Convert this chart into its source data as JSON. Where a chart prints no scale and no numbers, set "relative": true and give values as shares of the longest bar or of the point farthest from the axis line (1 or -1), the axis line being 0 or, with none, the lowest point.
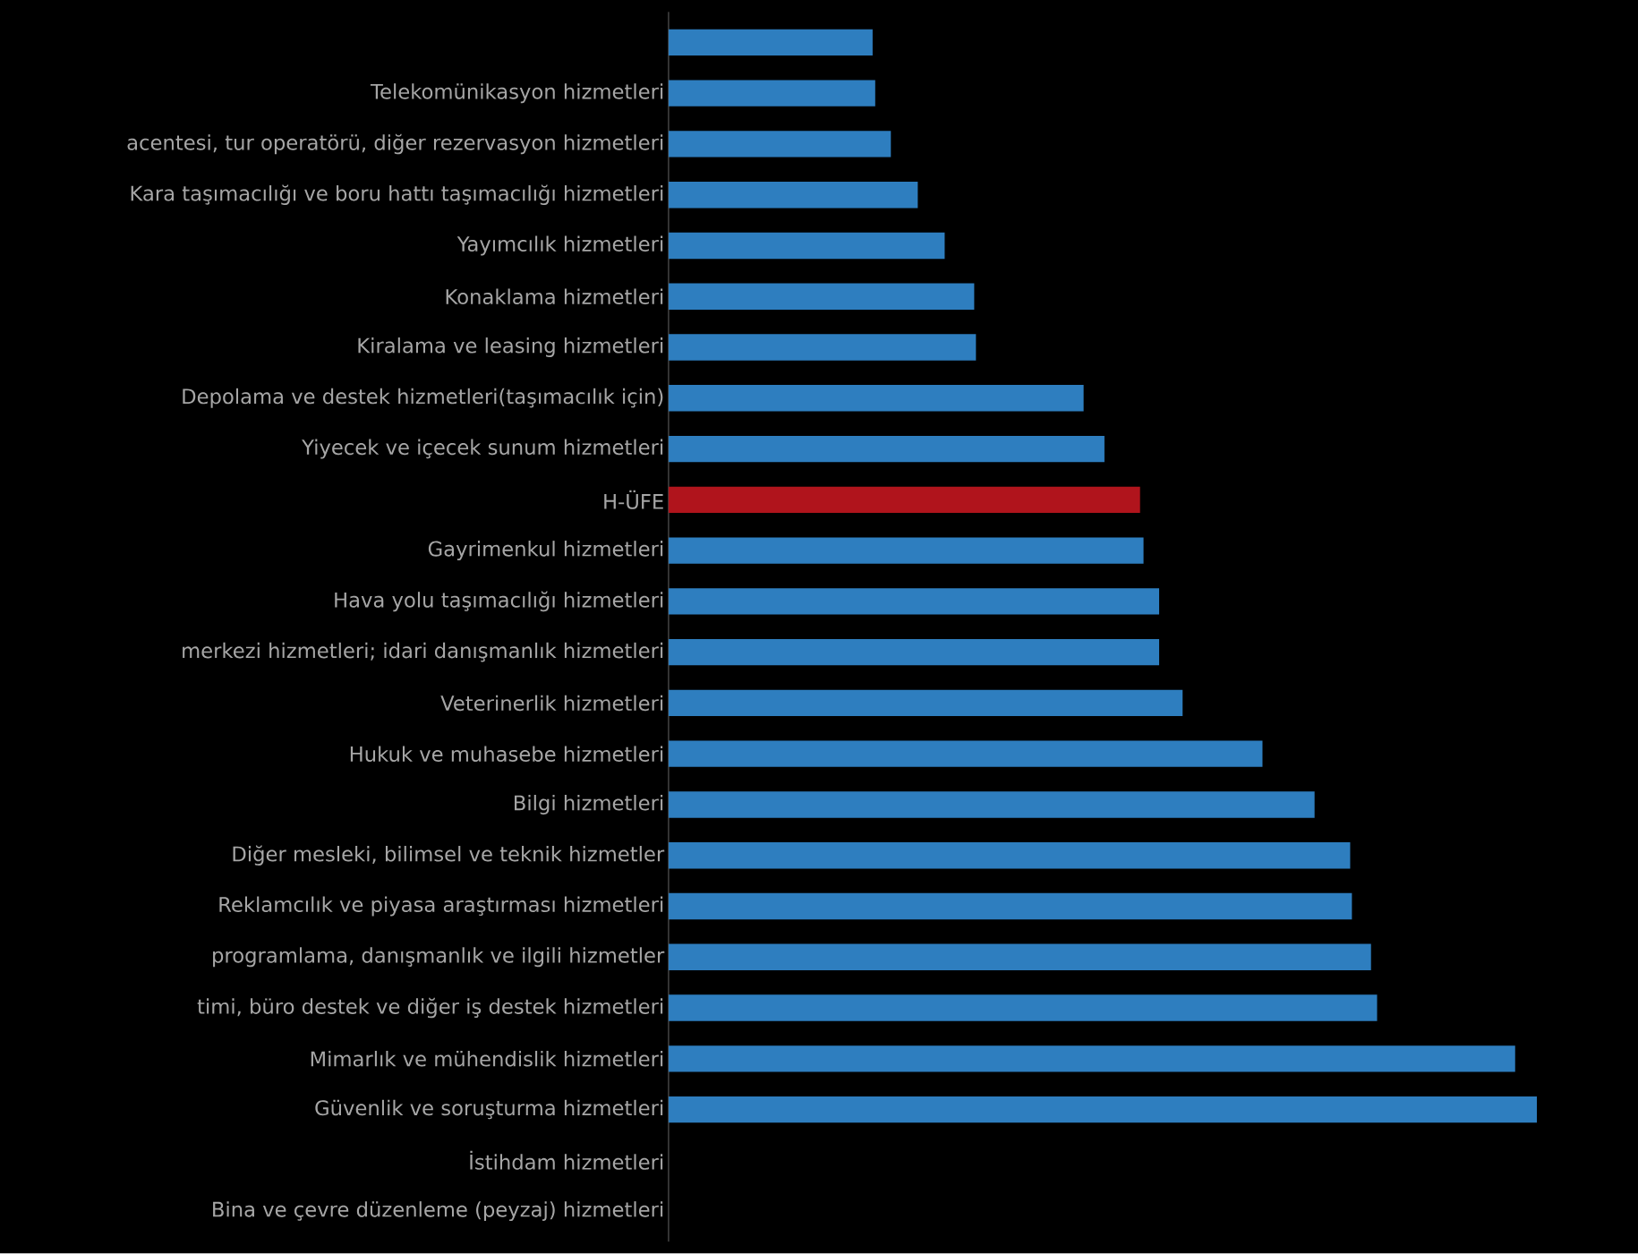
{
  "chart_data": {
    "type": "bar",
    "orientation": "horizontal",
    "relative": true,
    "categories": [
      null,
      "Telekomünikasyon hizmetleri",
      "acentesi, tur operatörü, diğer rezervasyon hizmetleri",
      "Kara taşımacılığı ve boru hattı taşımacılığı hizmetleri",
      "Yayımcılık hizmetleri",
      "Konaklama hizmetleri",
      "Kiralama ve leasing hizmetleri",
      "Depolama ve destek hizmetleri(taşımacılık için)",
      "Yiyecek ve içecek sunum hizmetleri",
      "H-ÜFE",
      "Gayrimenkul hizmetleri",
      "Hava yolu taşımacılığı hizmetleri",
      "merkezi hizmetleri; idari danışmanlık hizmetleri",
      "Veterinerlik hizmetleri",
      "Hukuk ve muhasebe hizmetleri",
      "Bilgi hizmetleri",
      "Diğer mesleki, bilimsel ve teknik hizmetler",
      "Reklamcılık ve piyasa araştırması hizmetleri",
      "programlama, danışmanlık ve ilgili hizmetler",
      "timi, büro destek ve diğer iş destek hizmetleri",
      "Mimarlık ve mühendislik hizmetleri",
      "Güvenlik ve soruşturma hizmetleri",
      "İstihdam hizmetleri",
      "Bina ve çevre düzenleme (peyzaj) hizmetleri"
    ],
    "values": [
      0.235,
      0.238,
      0.256,
      0.287,
      0.318,
      0.352,
      0.354,
      0.478,
      0.502,
      0.543,
      0.547,
      0.565,
      0.565,
      0.592,
      0.684,
      0.744,
      0.785,
      0.787,
      0.809,
      0.816,
      0.975,
      1,
      null,
      null
    ],
    "colors": [
      "#2e7ebf",
      "#2e7ebf",
      "#2e7ebf",
      "#2e7ebf",
      "#2e7ebf",
      "#2e7ebf",
      "#2e7ebf",
      "#2e7ebf",
      "#2e7ebf",
      "#b0141c",
      "#2e7ebf",
      "#2e7ebf",
      "#2e7ebf",
      "#2e7ebf",
      "#2e7ebf",
      "#2e7ebf",
      "#2e7ebf",
      "#2e7ebf",
      "#2e7ebf",
      "#2e7ebf",
      "#2e7ebf",
      "#2e7ebf",
      "#2e7ebf",
      "#2e7ebf"
    ]
  }
}
